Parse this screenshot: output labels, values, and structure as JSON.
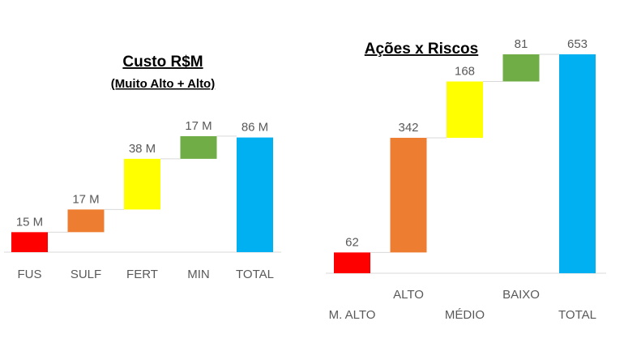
{
  "chart_data": [
    {
      "type": "waterfall",
      "title": "Custo R$M",
      "subtitle": "(Muito Alto + Alto)",
      "categories": [
        "FUS",
        "SULF",
        "FERT",
        "MIN",
        "TOTAL"
      ],
      "values": [
        15,
        17,
        38,
        17,
        86
      ],
      "data_labels": [
        "15 M",
        "17 M",
        "38 M",
        "17 M",
        "86 M"
      ],
      "is_total": [
        false,
        false,
        false,
        false,
        true
      ],
      "colors": [
        "#ff0000",
        "#ed7d31",
        "#ffff00",
        "#70ad47",
        "#00b0f0"
      ],
      "ylim": [
        0,
        90
      ],
      "grid": false,
      "legend": "none"
    },
    {
      "type": "waterfall",
      "title": "Ações x Riscos",
      "subtitle": "",
      "categories": [
        "M. ALTO",
        "ALTO",
        "MÉDIO",
        "BAIXO",
        "TOTAL"
      ],
      "values": [
        62,
        342,
        168,
        81,
        653
      ],
      "data_labels": [
        "62",
        "342",
        "168",
        "81",
        "653"
      ],
      "is_total": [
        false,
        false,
        false,
        false,
        true
      ],
      "colors": [
        "#ff0000",
        "#ed7d31",
        "#ffff00",
        "#70ad47",
        "#00b0f0"
      ],
      "ylim": [
        0,
        653
      ],
      "grid": false,
      "legend": "none"
    }
  ]
}
